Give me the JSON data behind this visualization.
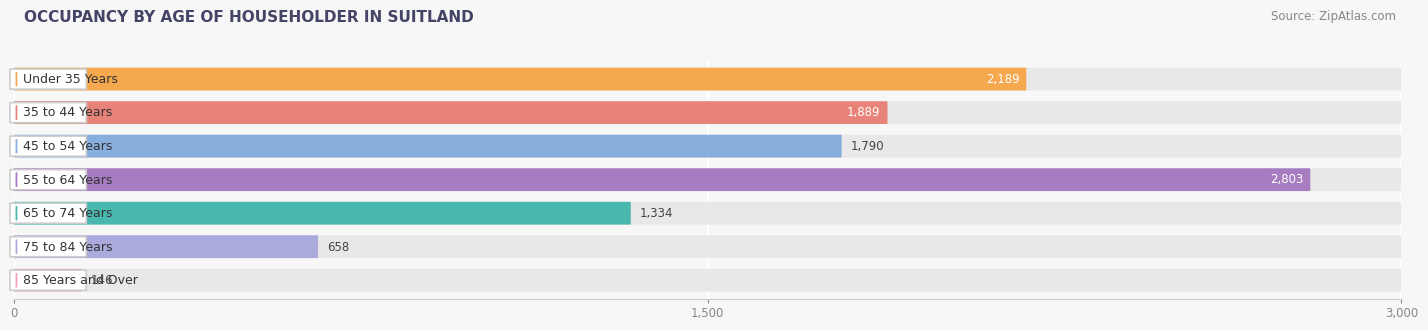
{
  "title": "OCCUPANCY BY AGE OF HOUSEHOLDER IN SUITLAND",
  "source": "Source: ZipAtlas.com",
  "categories": [
    "Under 35 Years",
    "35 to 44 Years",
    "45 to 54 Years",
    "55 to 64 Years",
    "65 to 74 Years",
    "75 to 84 Years",
    "85 Years and Over"
  ],
  "values": [
    2189,
    1889,
    1790,
    2803,
    1334,
    658,
    146
  ],
  "bar_colors": [
    "#F5A84E",
    "#E8837A",
    "#88AEDE",
    "#A87CC0",
    "#4BB8B0",
    "#AAAADD",
    "#F5A0B8"
  ],
  "value_inside": [
    true,
    true,
    false,
    true,
    false,
    false,
    false
  ],
  "xlim": [
    0,
    3000
  ],
  "xticks": [
    0,
    1500,
    3000
  ],
  "xtick_labels": [
    "0",
    "1,500",
    "3,000"
  ],
  "background_color": "#f7f7f7",
  "bar_bg_color": "#e8e8e8",
  "title_fontsize": 11,
  "source_fontsize": 8.5,
  "label_fontsize": 9,
  "value_fontsize": 8.5,
  "value_inside_color": "white",
  "value_outside_color": "#444444"
}
